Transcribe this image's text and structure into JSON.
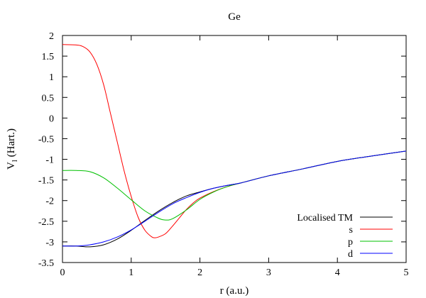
{
  "chart_data": {
    "type": "line",
    "title": "Ge",
    "xlabel": "r (a.u.)",
    "ylabel_main": "V",
    "ylabel_sub": "l",
    "ylabel_rest": " (Hart.)",
    "xlim": [
      0,
      5
    ],
    "ylim": [
      -3.5,
      2
    ],
    "xticks": [
      0,
      1,
      2,
      3,
      4,
      5
    ],
    "xtick_labels": [
      "0",
      "1",
      "2",
      "3",
      "4",
      "5"
    ],
    "yticks": [
      2,
      1.5,
      1,
      0.5,
      0,
      -0.5,
      -1,
      -1.5,
      -2,
      -2.5,
      -3,
      -3.5
    ],
    "ytick_labels": [
      "2",
      "1.5",
      "1",
      "0.5",
      "0",
      "-0.5",
      "-1",
      "-1.5",
      "-2",
      "-2.5",
      "-3",
      "-3.5"
    ],
    "grid": false,
    "legend_position": "bottom-right",
    "series": [
      {
        "name": "Localised TM",
        "color": "#000000",
        "x": [
          0,
          0.2,
          0.4,
          0.6,
          0.8,
          1.0,
          1.2,
          1.4,
          1.6,
          1.8,
          2.0,
          2.2,
          2.4,
          2.6,
          3.0,
          3.5,
          4.0,
          4.5,
          5.0
        ],
        "y": [
          -3.1,
          -3.1,
          -3.12,
          -3.07,
          -2.93,
          -2.72,
          -2.48,
          -2.25,
          -2.05,
          -1.89,
          -1.79,
          -1.7,
          -1.63,
          -1.57,
          -1.4,
          -1.23,
          -1.05,
          -0.92,
          -0.8
        ]
      },
      {
        "name": "s",
        "color": "#ff0000",
        "x": [
          0,
          0.2,
          0.3,
          0.4,
          0.5,
          0.6,
          0.7,
          0.8,
          0.9,
          1.0,
          1.1,
          1.2,
          1.3,
          1.35,
          1.4,
          1.5,
          1.6,
          1.7,
          1.8,
          1.9,
          2.0,
          2.2,
          2.4,
          2.6,
          3.0,
          3.5,
          4.0,
          4.5,
          5.0
        ],
        "y": [
          1.78,
          1.77,
          1.73,
          1.6,
          1.3,
          0.8,
          0.1,
          -0.6,
          -1.3,
          -1.9,
          -2.4,
          -2.72,
          -2.88,
          -2.9,
          -2.88,
          -2.8,
          -2.62,
          -2.42,
          -2.22,
          -2.06,
          -1.94,
          -1.78,
          -1.66,
          -1.57,
          -1.4,
          -1.23,
          -1.05,
          -0.92,
          -0.8
        ]
      },
      {
        "name": "p",
        "color": "#00c000",
        "x": [
          0,
          0.2,
          0.4,
          0.6,
          0.8,
          1.0,
          1.2,
          1.4,
          1.5,
          1.6,
          1.8,
          2.0,
          2.2,
          2.4,
          2.6,
          3.0,
          3.5,
          4.0,
          4.5,
          5.0
        ],
        "y": [
          -1.27,
          -1.27,
          -1.3,
          -1.45,
          -1.7,
          -1.98,
          -2.25,
          -2.43,
          -2.47,
          -2.44,
          -2.23,
          -1.97,
          -1.79,
          -1.66,
          -1.57,
          -1.4,
          -1.23,
          -1.05,
          -0.92,
          -0.8
        ]
      },
      {
        "name": "d",
        "color": "#0000ff",
        "x": [
          0,
          0.2,
          0.4,
          0.6,
          0.8,
          1.0,
          1.2,
          1.4,
          1.6,
          1.8,
          2.0,
          2.2,
          2.4,
          2.6,
          3.0,
          3.5,
          4.0,
          4.5,
          5.0
        ],
        "y": [
          -3.1,
          -3.1,
          -3.07,
          -3.0,
          -2.88,
          -2.71,
          -2.5,
          -2.28,
          -2.08,
          -1.93,
          -1.8,
          -1.7,
          -1.63,
          -1.57,
          -1.4,
          -1.23,
          -1.05,
          -0.92,
          -0.8
        ]
      }
    ]
  }
}
